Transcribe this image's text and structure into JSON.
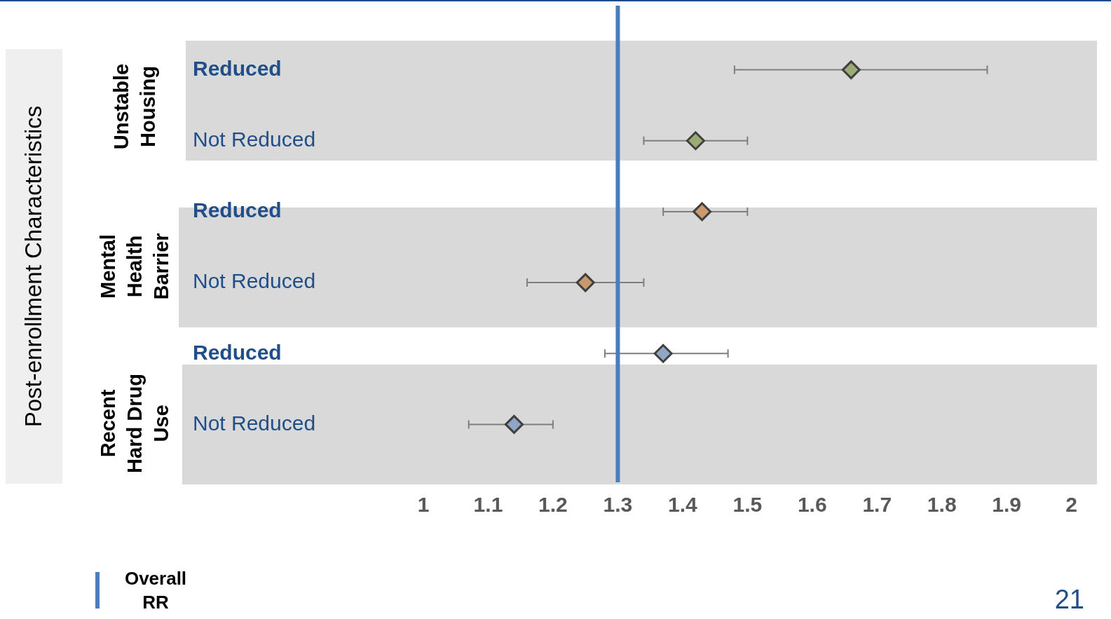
{
  "chart_data": {
    "type": "scatter",
    "orientation": "horizontal",
    "categories": [
      "Reduced",
      "Not Reduced",
      "Reduced",
      "Not Reduced",
      "Reduced",
      "Not Reduced"
    ],
    "series": [
      {
        "color": "#9aab74",
        "values": [
          1.66,
          1.42,
          null,
          null,
          null,
          null
        ],
        "errors": [
          [
            1.48,
            1.87
          ],
          [
            1.34,
            1.5
          ],
          null,
          null,
          null,
          null
        ]
      },
      {
        "color": "#c99a6b",
        "values": [
          null,
          null,
          1.43,
          1.25,
          null,
          null
        ],
        "errors": [
          null,
          null,
          [
            1.37,
            1.5
          ],
          [
            1.16,
            1.34
          ],
          null,
          null
        ]
      },
      {
        "color": "#8fa6c4",
        "values": [
          null,
          null,
          null,
          null,
          1.37,
          1.14
        ],
        "errors": [
          null,
          null,
          null,
          null,
          [
            1.28,
            1.47
          ],
          [
            1.07,
            1.2
          ]
        ]
      }
    ],
    "xlim": [
      1,
      2
    ],
    "xticks": [
      1,
      1.1,
      1.2,
      1.3,
      1.4,
      1.5,
      1.6,
      1.7,
      1.8,
      1.9,
      2
    ],
    "marker": "diamond",
    "grid": false,
    "ref_lines": [
      {
        "axis": "x",
        "value": 1.3,
        "label": "Overall RR",
        "color": "#4a7ebb"
      }
    ],
    "annotations": [
      "Post-enrollment Characteristics",
      "Unstable Housing",
      "Mental Health Barrier",
      "Recent Hard Drug Use",
      "21"
    ]
  }
}
